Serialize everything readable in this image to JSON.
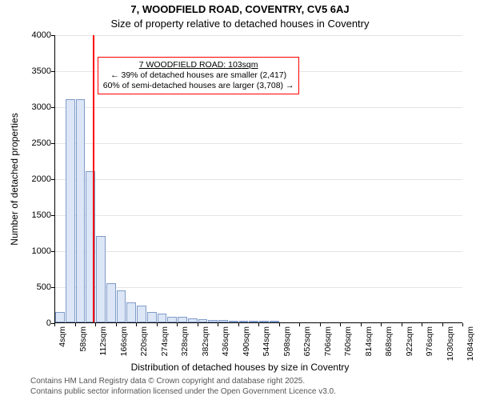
{
  "title_line1": "7, WOODFIELD ROAD, COVENTRY, CV5 6AJ",
  "title_line2": "Size of property relative to detached houses in Coventry",
  "ylabel": "Number of detached properties",
  "xlabel": "Distribution of detached houses by size in Coventry",
  "footer_line1": "Contains HM Land Registry data © Crown copyright and database right 2025.",
  "footer_line2": "Contains public sector information licensed under the Open Government Licence v3.0.",
  "chart": {
    "type": "histogram",
    "background_color": "#ffffff",
    "grid_color": "#e4e4e4",
    "axis_color": "#000000",
    "bar_fill": "#dce6f6",
    "bar_stroke": "#7f9bc9",
    "marker_color": "#ff0000",
    "anno_border_color": "#ff0000",
    "x_min": 4,
    "x_max": 1084,
    "x_tick_step": 54,
    "x_unit": "sqm",
    "y_min": 0,
    "y_max": 4000,
    "y_tick_step": 500,
    "bin_width_sqm": 27,
    "bin_start_sqm": 4,
    "bar_values": [
      150,
      3100,
      3100,
      2100,
      1200,
      550,
      450,
      280,
      230,
      150,
      120,
      80,
      80,
      60,
      50,
      30,
      30,
      20,
      20,
      10,
      10,
      10,
      0,
      0,
      0,
      0,
      0,
      0,
      0,
      0,
      0,
      0,
      0,
      0,
      0,
      0,
      0,
      0,
      0,
      0
    ],
    "marker_x_sqm": 103,
    "anno_lines": [
      "7 WOODFIELD ROAD: 103sqm",
      "← 39% of detached houses are smaller (2,417)",
      "60% of semi-detached houses are larger (3,708) →"
    ],
    "title_fontsize": 13,
    "label_fontsize": 12,
    "tick_fontsize": 11,
    "anno_fontsize": 10.5
  }
}
